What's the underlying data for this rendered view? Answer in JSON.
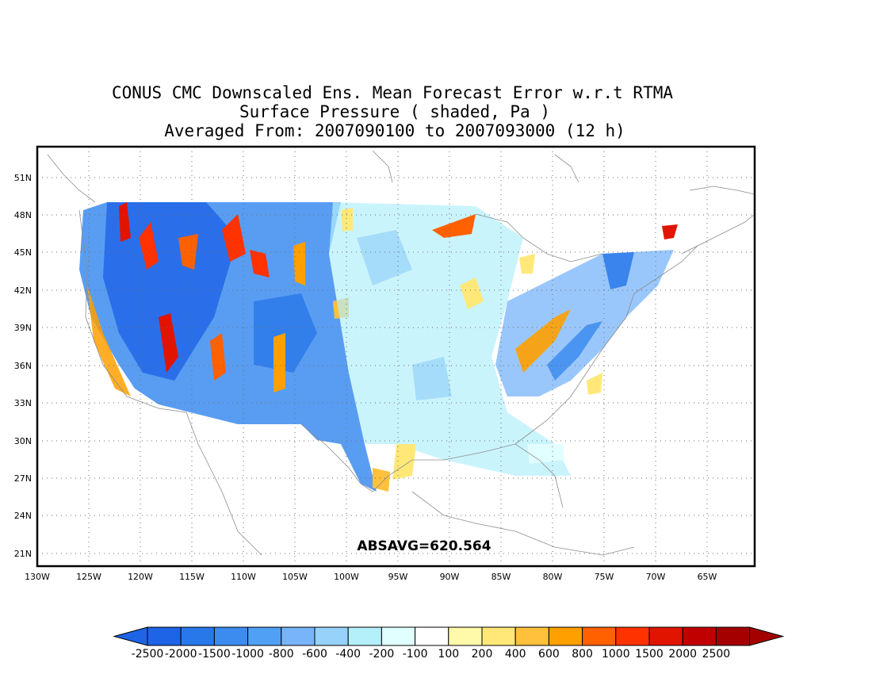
{
  "title": {
    "line1": "CONUS CMC Downscaled Ens. Mean Forecast Error w.r.t RTMA",
    "line2": "Surface Pressure ( shaded, Pa )",
    "line3": "Averaged From: 2007090100 to 2007093000 (12 h)"
  },
  "map": {
    "lon_range": [
      -130,
      -60
    ],
    "lat_range": [
      19.5,
      52.5
    ],
    "lon_ticks": [
      "130W",
      "125W",
      "120W",
      "115W",
      "110W",
      "105W",
      "100W",
      "95W",
      "90W",
      "85W",
      "80W",
      "75W",
      "70W",
      "65W"
    ],
    "lat_ticks": [
      "51N",
      "48N",
      "45N",
      "42N",
      "39N",
      "36N",
      "33N",
      "30N",
      "27N",
      "24N",
      "21N"
    ],
    "annotation": "ABSAVG=620.564"
  },
  "colorbar": {
    "labels": [
      "-2500",
      "-2000",
      "-1500",
      "-1000",
      "-800",
      "-600",
      "-400",
      "-200",
      "-100",
      "100",
      "200",
      "400",
      "600",
      "800",
      "1000",
      "1500",
      "2000",
      "2500"
    ],
    "colors": [
      "#1e64e6",
      "#2878ea",
      "#3c8cf0",
      "#50a0f5",
      "#78b4fa",
      "#96d2fa",
      "#b4f0fa",
      "#e1ffff",
      "#ffffff",
      "#fffaaa",
      "#ffe878",
      "#ffc03c",
      "#ffa000",
      "#ff6000",
      "#ff3200",
      "#e11400",
      "#c00000",
      "#a50000"
    ],
    "under_color": "#1e64e6",
    "over_color": "#a50000"
  }
}
